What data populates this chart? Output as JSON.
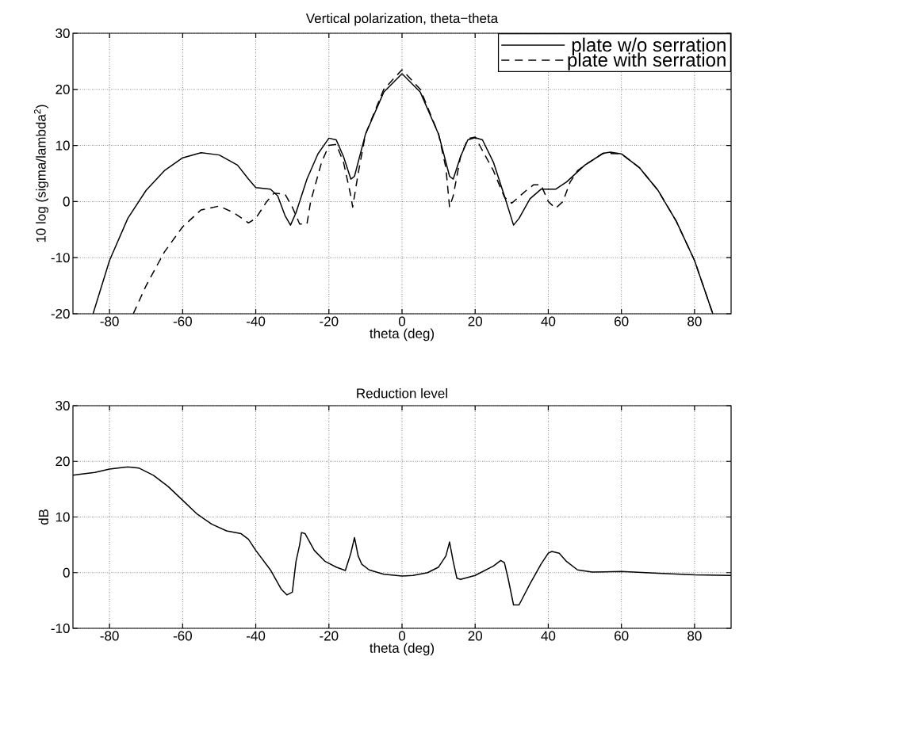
{
  "chart_data": [
    {
      "type": "line",
      "title": "Vertical polarization, theta−theta",
      "xlabel": "theta (deg)",
      "ylabel": "10 log (sigma/lambda$^{2}$)",
      "xlim": [
        -90,
        90
      ],
      "ylim": [
        -20,
        30
      ],
      "xticks": [
        -80,
        -60,
        -40,
        -20,
        0,
        20,
        40,
        60,
        80
      ],
      "yticks": [
        -20,
        -10,
        0,
        10,
        20,
        30
      ],
      "grid": true,
      "legend": "top right",
      "series": [
        {
          "name": "plate w/o serration",
          "color": "#000000",
          "line_style": "solid",
          "x": [
            -84.5,
            -80,
            -75,
            -70,
            -65,
            -60,
            -55,
            -50,
            -45,
            -42,
            -40,
            -36,
            -34,
            -32,
            -30.5,
            -29,
            -26,
            -23,
            -20,
            -18,
            -16,
            -14,
            -13,
            -10,
            -5,
            0,
            5,
            10,
            13,
            14,
            16,
            18,
            20,
            22,
            25,
            28,
            30.5,
            32,
            35,
            38,
            42,
            45,
            50,
            55,
            57,
            60,
            65,
            70,
            75,
            80,
            85
          ],
          "values": [
            -20,
            -10.5,
            -3,
            2,
            5.5,
            7.8,
            8.7,
            8.3,
            6.5,
            4,
            2.5,
            2.2,
            1,
            -2.5,
            -4.2,
            -2,
            4,
            8.5,
            11.3,
            11,
            8,
            4,
            4.5,
            12,
            19.5,
            22.8,
            19.5,
            12,
            4.5,
            4,
            8,
            11,
            11.4,
            11,
            7,
            1,
            -4.2,
            -3,
            0.5,
            2.2,
            2.2,
            3.5,
            6.5,
            8.6,
            8.8,
            8.5,
            6,
            2,
            -3.5,
            -10.5,
            -20
          ]
        },
        {
          "name": "plate with serration",
          "color": "#000000",
          "line_style": "dashed",
          "x": [
            -73.5,
            -70,
            -65,
            -60,
            -55,
            -50,
            -46,
            -42,
            -40,
            -37,
            -35,
            -32,
            -30,
            -28,
            -26,
            -25,
            -22,
            -20,
            -18,
            -16,
            -14,
            -13.5,
            -12,
            -10,
            -5,
            0,
            5,
            10,
            12,
            13,
            14,
            16,
            18,
            20,
            25,
            28,
            30,
            34,
            36,
            38,
            40,
            42,
            44,
            46,
            48,
            50,
            55,
            60,
            65,
            70,
            75,
            80,
            85
          ],
          "values": [
            -20,
            -15,
            -9,
            -4.5,
            -1.5,
            -0.8,
            -2,
            -3.8,
            -3,
            0,
            1.5,
            1.3,
            -1,
            -4,
            -4,
            0,
            7,
            10,
            10.2,
            7,
            1,
            -1,
            5,
            12,
            20,
            23.5,
            20,
            12,
            6,
            -1,
            1,
            8,
            11.2,
            11.5,
            5.5,
            0.8,
            -0.3,
            2,
            3,
            3,
            0,
            -1.2,
            0,
            3.5,
            5.5,
            6.5,
            8.6,
            8.5,
            6,
            2,
            -3.5,
            -10.5,
            -20
          ]
        }
      ]
    },
    {
      "type": "line",
      "title": "Reduction level",
      "xlabel": "theta (deg)",
      "ylabel": "dB",
      "xlim": [
        -90,
        90
      ],
      "ylim": [
        -10,
        30
      ],
      "xticks": [
        -80,
        -60,
        -40,
        -20,
        0,
        20,
        40,
        60,
        80
      ],
      "yticks": [
        -10,
        0,
        10,
        20,
        30
      ],
      "grid": true,
      "series": [
        {
          "color": "#000000",
          "line_style": "solid",
          "x": [
            -90,
            -88,
            -84,
            -80,
            -75,
            -72,
            -68,
            -64,
            -60,
            -56,
            -52,
            -48,
            -44,
            -42,
            -40,
            -36,
            -33,
            -31.5,
            -30,
            -29,
            -28,
            -27.5,
            -26.5,
            -24,
            -21,
            -18,
            -15.5,
            -14,
            -13,
            -12,
            -11,
            -9,
            -5,
            0,
            3,
            7,
            10,
            12,
            13,
            14,
            15,
            16,
            20,
            25,
            27,
            28,
            29,
            30.5,
            32,
            35,
            38,
            40,
            41,
            43,
            45,
            48,
            52,
            60,
            70,
            80,
            90
          ],
          "values": [
            17.5,
            17.7,
            18,
            18.6,
            19,
            18.8,
            17.5,
            15.5,
            13,
            10.5,
            8.7,
            7.5,
            7,
            6,
            4,
            0.5,
            -3,
            -4,
            -3.5,
            2,
            5,
            7.2,
            7,
            4,
            2,
            1,
            0.4,
            3.5,
            6.3,
            3,
            1.5,
            0.5,
            -0.3,
            -0.6,
            -0.5,
            0,
            1,
            3,
            5.5,
            2,
            -1,
            -1.2,
            -0.5,
            1.2,
            2.2,
            1.8,
            -1,
            -5.8,
            -5.8,
            -2,
            1.5,
            3.5,
            3.8,
            3.5,
            2,
            0.5,
            0.1,
            0.2,
            -0.1,
            -0.4,
            -0.5
          ]
        }
      ]
    }
  ]
}
